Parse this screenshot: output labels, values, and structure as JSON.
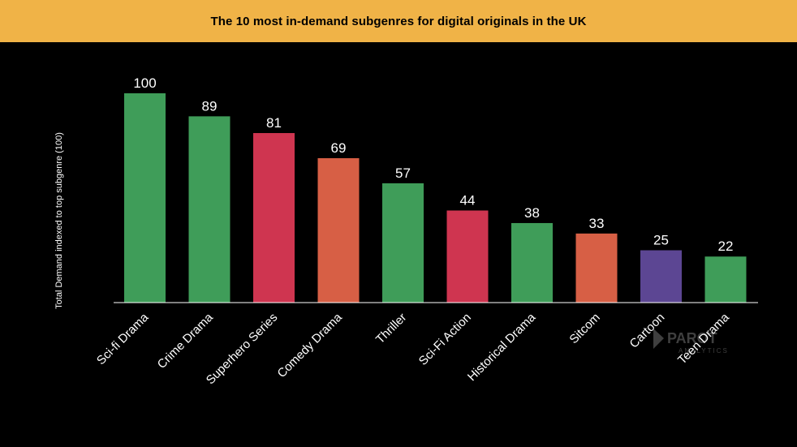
{
  "colors": {
    "title_bg": "#f0b347",
    "background": "#000000",
    "axis": "#ffffff"
  },
  "chart_data": {
    "type": "bar",
    "title": "The 10 most in-demand subgenres for digital originals in the UK",
    "xlabel": "",
    "ylabel": "Total Demand indexed to top subgenre (100)",
    "categories": [
      "Sci-fi Drama",
      "Crime Drama",
      "Superhero Series",
      "Comedy Drama",
      "Thriller",
      "Sci-Fi Action",
      "Historical Drama",
      "Sitcom",
      "Cartoon",
      "Teen Drama"
    ],
    "values": [
      100,
      89,
      81,
      69,
      57,
      44,
      38,
      33,
      25,
      22
    ],
    "bar_colors": [
      "#3f9d59",
      "#3f9d59",
      "#cf3550",
      "#d75f45",
      "#3f9d59",
      "#cf3550",
      "#3f9d59",
      "#d75f45",
      "#5c4693",
      "#3f9d59"
    ],
    "ylim": [
      0,
      100
    ],
    "grid": false,
    "legend": "none",
    "data_labels": true
  },
  "watermark": {
    "main": "PAROT",
    "sub": "ANALYTICS"
  }
}
